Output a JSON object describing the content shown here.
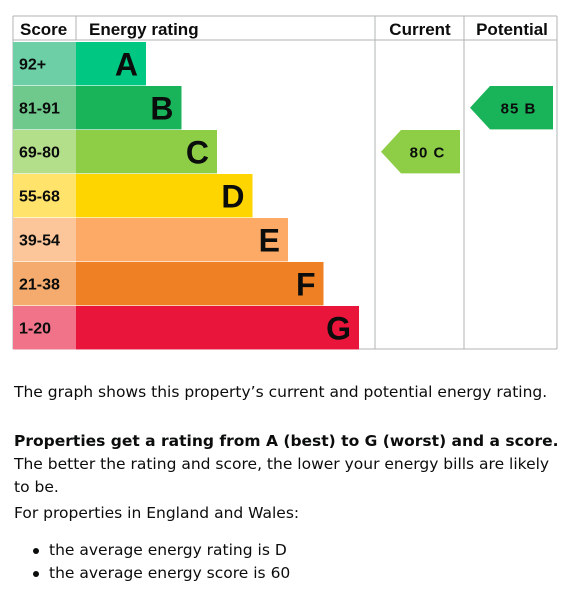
{
  "chart_data": {
    "type": "table",
    "headers": {
      "score": "Score",
      "rating": "Energy rating",
      "current": "Current",
      "potential": "Potential"
    },
    "bands": [
      {
        "score": "92+",
        "letter": "A",
        "color": "#00c781",
        "score_bg": "#6dcfa6"
      },
      {
        "score": "81-91",
        "letter": "B",
        "color": "#19b459",
        "score_bg": "#6fc88c"
      },
      {
        "score": "69-80",
        "letter": "C",
        "color": "#8dce46",
        "score_bg": "#b4df8a"
      },
      {
        "score": "55-68",
        "letter": "D",
        "color": "#ffd500",
        "score_bg": "#ffe36a"
      },
      {
        "score": "39-54",
        "letter": "E",
        "color": "#fcaa65",
        "score_bg": "#fdc69a"
      },
      {
        "score": "21-38",
        "letter": "F",
        "color": "#ef8023",
        "score_bg": "#f4ab6d"
      },
      {
        "score": "1-20",
        "letter": "G",
        "color": "#e9153b",
        "score_bg": "#f07389"
      }
    ],
    "current": {
      "score": "80",
      "letter": "C",
      "band_index": 2,
      "color": "#8dce46"
    },
    "potential": {
      "score": "85",
      "letter": "B",
      "band_index": 1,
      "color": "#19b459"
    }
  },
  "text": {
    "graph_note": "The graph shows this property’s current and potential energy rating.",
    "rating_bold": "Properties get a rating from A (best) to G (worst) and a score.",
    "rating_rest": " The better the rating and score, the lower your energy bills are likely to be.",
    "region_intro": "For properties in England and Wales:",
    "bullets": [
      "the average energy rating is D",
      "the average energy score is 60"
    ]
  }
}
